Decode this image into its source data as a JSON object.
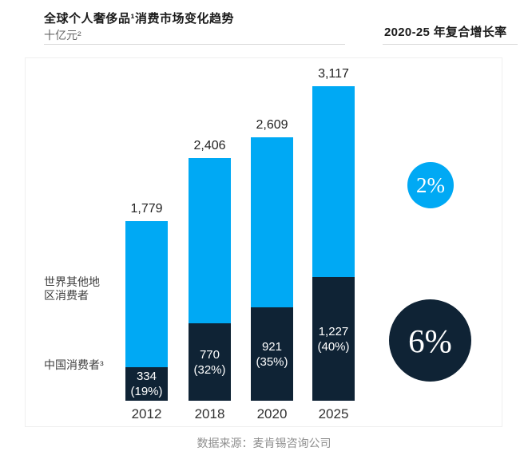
{
  "header": {
    "title": "全球个人奢侈品¹消费市场变化趋势",
    "unit_label": "十亿元²",
    "cagr_title": "2020-25 年复合增长率"
  },
  "annotations": {
    "rest_of_world": "世界其他地区消费者",
    "china": "中国消费者³"
  },
  "footer": {
    "source": "数据来源：麦肯锡咨询公司"
  },
  "colors": {
    "light_blue": "#00A9F4",
    "dark_navy": "#0F2335",
    "divider": "#D9D9D9"
  },
  "chart_data": {
    "type": "bar",
    "stacked": true,
    "title": "全球个人奢侈品消费市场变化趋势",
    "unit": "十亿元",
    "categories": [
      "2012",
      "2018",
      "2020",
      "2025"
    ],
    "totals": [
      1779,
      2406,
      2609,
      3117
    ],
    "series": [
      {
        "name": "中国消费者",
        "values": [
          334,
          770,
          921,
          1227
        ],
        "share_of_total": [
          "19%",
          "32%",
          "35%",
          "40%"
        ],
        "color": "#0F2335"
      },
      {
        "name": "世界其他地区消费者",
        "values": [
          1445,
          1636,
          1688,
          1890
        ],
        "color": "#00A9F4"
      }
    ],
    "cagr_2020_25": [
      {
        "segment": "世界其他地区消费者",
        "label": "2%",
        "color": "#00A9F4"
      },
      {
        "segment": "中国消费者",
        "label": "6%",
        "color": "#0F2335"
      }
    ]
  }
}
